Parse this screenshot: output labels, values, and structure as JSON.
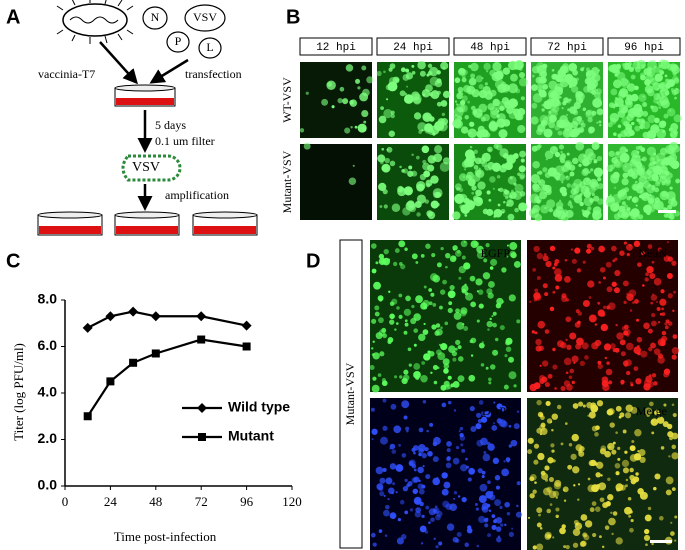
{
  "panel_a": {
    "label": "A",
    "proteins": [
      "N",
      "VSV",
      "P",
      "L"
    ],
    "left_step": "vaccinia-T7",
    "right_step": "transfection",
    "incubation": "5 days",
    "filter": "0.1 um filter",
    "virus": "VSV",
    "amplification": "amplification"
  },
  "panel_b": {
    "label": "B",
    "columns": [
      "12 hpi",
      "24 hpi",
      "48 hpi",
      "72 hpi",
      "96 hpi"
    ],
    "rows": [
      "WT-VSV",
      "Mutant-VSV"
    ]
  },
  "chart_data": {
    "type": "line",
    "label": "C",
    "x_label": "Time post-infection",
    "y_label": "Titer (log PFU/ml)",
    "x": [
      12,
      24,
      36,
      48,
      72,
      96
    ],
    "series": [
      {
        "name": "Wild type",
        "color": "#000000",
        "marker": "diamond",
        "values": [
          6.8,
          7.3,
          7.5,
          7.3,
          7.3,
          6.9
        ]
      },
      {
        "name": "Mutant",
        "color": "#000000",
        "marker": "square",
        "values": [
          3.0,
          4.5,
          5.3,
          5.7,
          6.3,
          6.0
        ]
      }
    ],
    "xlim": [
      0,
      120
    ],
    "xticks": [
      0,
      24,
      48,
      72,
      96,
      120
    ],
    "ylim": [
      0,
      8
    ],
    "yticks": [
      {
        "value": 0,
        "label": "0.0"
      },
      {
        "value": 2,
        "label": "2.0"
      },
      {
        "value": 4,
        "label": "4.0"
      },
      {
        "value": 6,
        "label": "6.0"
      },
      {
        "value": 8,
        "label": "8.0"
      }
    ],
    "grid": false
  },
  "panel_d": {
    "label": "D",
    "row": "Mutant-VSV",
    "channels": [
      "EGFP",
      "NeuN",
      "DAPI",
      "Merge"
    ]
  }
}
